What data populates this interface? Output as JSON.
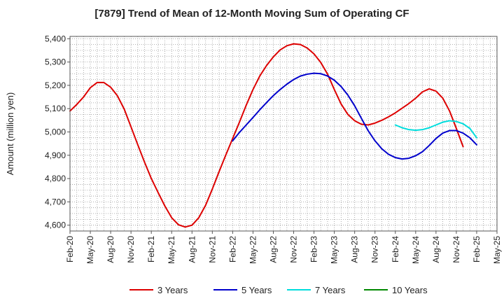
{
  "chart_data": {
    "type": "line",
    "title": "[7879]  Trend of Mean of 12-Month Moving Sum of Operating CF",
    "xlabel": "",
    "ylabel": "Amount (million yen)",
    "ylim": [
      4575,
      5410
    ],
    "yticks": [
      4600,
      4700,
      4800,
      4900,
      5000,
      5100,
      5200,
      5300,
      5400
    ],
    "ytick_labels": [
      "4,600",
      "4,700",
      "4,800",
      "4,900",
      "5,000",
      "5,100",
      "5,200",
      "5,300",
      "5,400"
    ],
    "x_start": "Feb-20",
    "x_end": "May-25",
    "xtick_labels": [
      "Feb-20",
      "May-20",
      "Aug-20",
      "Nov-20",
      "Feb-21",
      "May-21",
      "Aug-21",
      "Nov-21",
      "Feb-22",
      "May-22",
      "Aug-22",
      "Nov-22",
      "Feb-23",
      "May-23",
      "Aug-23",
      "Nov-23",
      "Feb-24",
      "May-24",
      "Aug-24",
      "Nov-24",
      "Feb-25",
      "May-25"
    ],
    "grid": true,
    "legend_position": "bottom",
    "series": [
      {
        "name": "3 Years",
        "color": "#dd0000",
        "start": "Feb-20",
        "values": [
          5090,
          5118,
          5150,
          5190,
          5212,
          5212,
          5192,
          5155,
          5098,
          5022,
          4945,
          4870,
          4800,
          4740,
          4682,
          4632,
          4602,
          4592,
          4600,
          4632,
          4685,
          4755,
          4830,
          4902,
          4972,
          5042,
          5115,
          5182,
          5240,
          5285,
          5322,
          5352,
          5370,
          5378,
          5375,
          5360,
          5335,
          5298,
          5248,
          5182,
          5120,
          5075,
          5048,
          5033,
          5030,
          5038,
          5050,
          5065,
          5082,
          5102,
          5122,
          5145,
          5172,
          5185,
          5175,
          5145,
          5090,
          5015,
          4937
        ]
      },
      {
        "name": "5 Years",
        "color": "#0000cc",
        "start": "Feb-22",
        "values": [
          4962,
          4998,
          5030,
          5062,
          5095,
          5126,
          5156,
          5182,
          5205,
          5225,
          5240,
          5248,
          5252,
          5250,
          5240,
          5222,
          5195,
          5158,
          5112,
          5058,
          5005,
          4962,
          4928,
          4904,
          4890,
          4884,
          4887,
          4898,
          4915,
          4942,
          4972,
          4995,
          5006,
          5006,
          4995,
          4975,
          4945
        ]
      },
      {
        "name": "7 Years",
        "color": "#00dddd",
        "start": "Feb-24",
        "values": [
          5030,
          5018,
          5010,
          5007,
          5010,
          5018,
          5030,
          5042,
          5048,
          5045,
          5035,
          5015,
          4975
        ]
      },
      {
        "name": "10 Years",
        "color": "#008800",
        "start": "Feb-25",
        "values": []
      }
    ]
  }
}
